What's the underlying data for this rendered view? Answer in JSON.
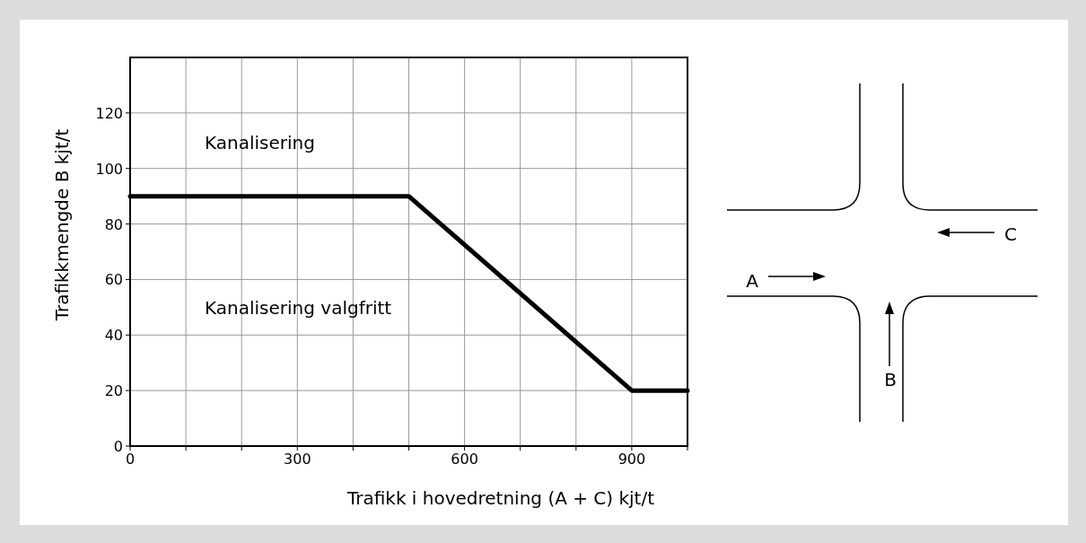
{
  "chart_data": {
    "type": "line",
    "xlabel": "Trafikk i hovedretning (A + C) kjt/t",
    "ylabel": "Trafikkmengde B kjt/t",
    "x": [
      0,
      500,
      900,
      1000
    ],
    "series": [
      {
        "color": "#000000",
        "values": [
          90,
          90,
          20,
          20
        ]
      }
    ],
    "xlim": [
      0,
      1000
    ],
    "ylim": [
      0,
      140
    ],
    "xticks": [
      0,
      {
        "value": 100,
        "label": null
      },
      {
        "value": 200,
        "label": null
      },
      300,
      {
        "value": 400,
        "label": null
      },
      {
        "value": 500,
        "label": null
      },
      600,
      {
        "value": 700,
        "label": null
      },
      {
        "value": 800,
        "label": null
      },
      900,
      {
        "value": 1000,
        "label": null
      }
    ],
    "yticks": [
      0,
      20,
      40,
      60,
      80,
      100,
      120
    ],
    "grid": true,
    "marker": "none",
    "line_style": "solid",
    "annotations": [
      "Kanalisering",
      "Kanalisering valgfritt",
      "A",
      "B",
      "C"
    ]
  }
}
